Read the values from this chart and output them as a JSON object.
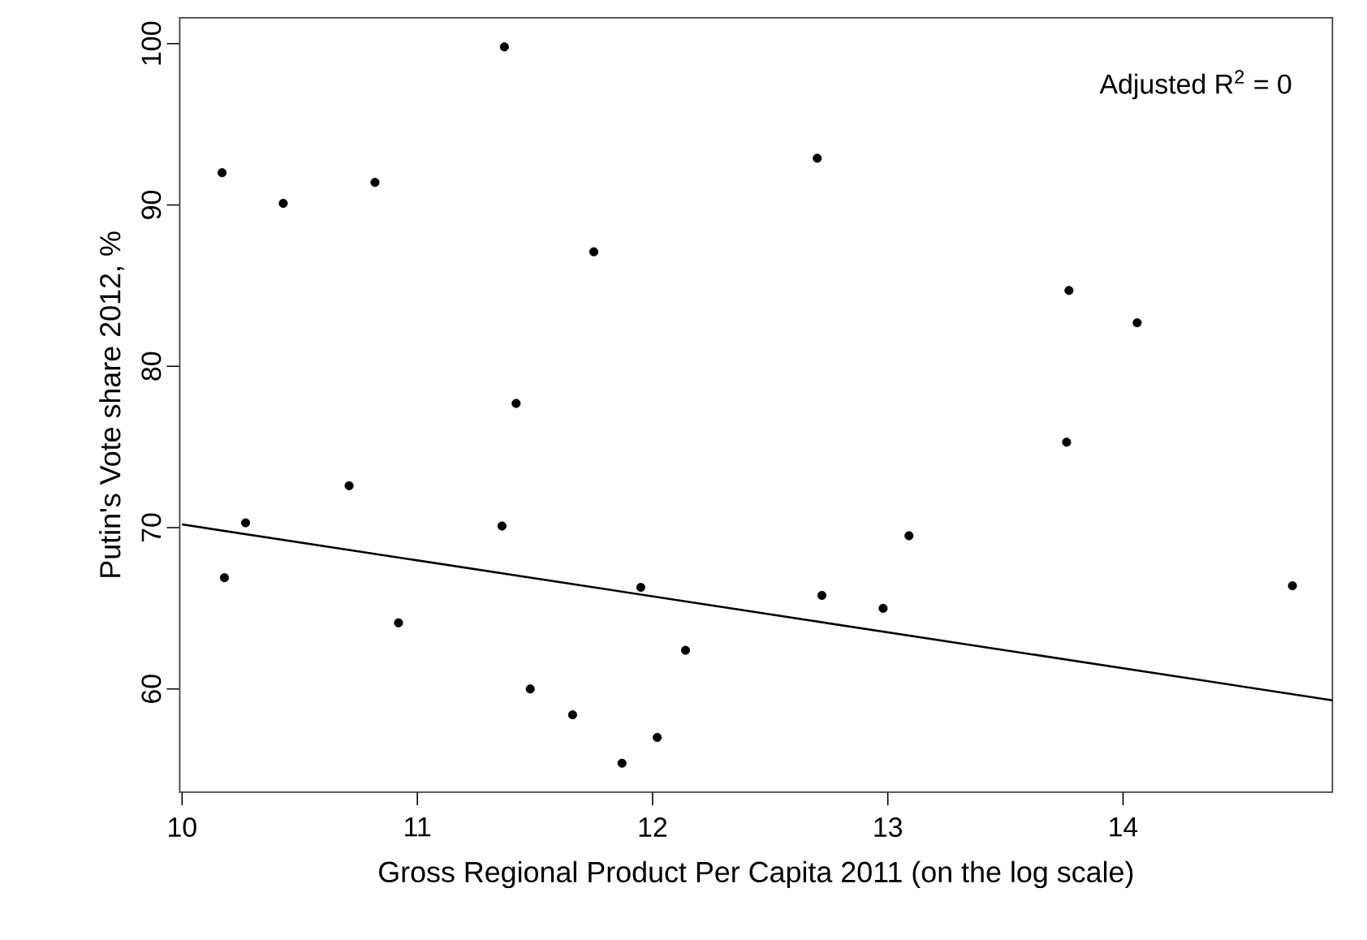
{
  "chart_data": {
    "type": "scatter",
    "xlabel": "Gross Regional Product Per Capita 2011 (on the log scale)",
    "ylabel": "Putin's Vote share 2012, %",
    "annotations": [
      "Adjusted R$^{2}$ = 0"
    ],
    "xlim": [
      9.99,
      14.89
    ],
    "ylim": [
      53.6,
      101.6
    ],
    "xticks": [
      10,
      11,
      12,
      13,
      14
    ],
    "yticks": [
      60,
      70,
      80,
      90,
      100
    ],
    "series": [
      {
        "color": "#000000",
        "marker": "circle",
        "x": [
          10.17,
          10.43,
          10.82,
          11.37,
          11.75,
          11.42,
          12.7,
          13.77,
          14.06,
          13.76,
          10.27,
          10.71,
          10.18,
          10.92,
          11.36,
          11.95,
          11.48,
          11.66,
          11.87,
          12.02,
          12.14,
          12.72,
          12.98,
          13.09,
          14.72
        ],
        "values": [
          92.0,
          90.1,
          91.4,
          99.8,
          87.1,
          77.7,
          92.9,
          84.7,
          82.7,
          75.3,
          70.3,
          72.6,
          66.9,
          64.1,
          70.1,
          66.3,
          60.0,
          58.4,
          55.4,
          57.0,
          62.4,
          65.8,
          65.0,
          69.5,
          66.4
        ]
      },
      {
        "type": "line",
        "color": "#000000",
        "marker": "none",
        "line_style": "solid",
        "x": [
          10.0,
          14.89
        ],
        "values": [
          70.2,
          59.3
        ]
      }
    ]
  }
}
